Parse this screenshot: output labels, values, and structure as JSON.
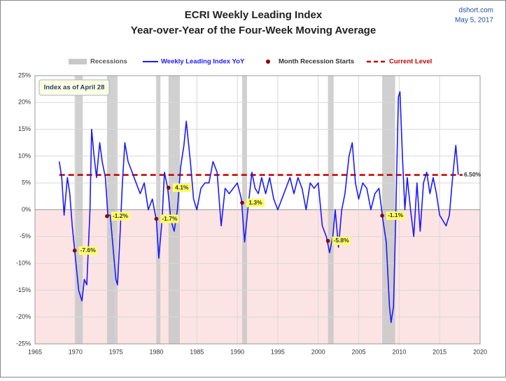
{
  "chart_data": {
    "type": "line",
    "title": "ECRI Weekly Leading Index",
    "subtitle": "Year-over-Year of the Four-Week Moving Average",
    "source": "dshort.com",
    "date": "May 5, 2017",
    "note": "Index as of April 28",
    "xlim": [
      1965,
      2020
    ],
    "xticks": [
      1965,
      1970,
      1975,
      1980,
      1985,
      1990,
      1995,
      2000,
      2005,
      2010,
      2015,
      2020
    ],
    "ylim": [
      -25,
      25
    ],
    "yticks": [
      {
        "value": -25,
        "label": "-25%"
      },
      {
        "value": -20,
        "label": "-20%"
      },
      {
        "value": -15,
        "label": "-15%"
      },
      {
        "value": -10,
        "label": "-10%"
      },
      {
        "value": -5,
        "label": "-5%"
      },
      {
        "value": 0,
        "label": "0%"
      },
      {
        "value": 5,
        "label": "5%"
      },
      {
        "value": 10,
        "label": "10%"
      },
      {
        "value": 15,
        "label": "15%"
      },
      {
        "value": 20,
        "label": "20%"
      },
      {
        "value": 25,
        "label": "25%"
      }
    ],
    "grid": true,
    "negative_fill": "#fde4e4",
    "x": [
      1968.0,
      1968.3,
      1968.6,
      1969.0,
      1969.3,
      1969.6,
      1970.0,
      1970.4,
      1970.8,
      1971.1,
      1971.4,
      1971.8,
      1972.0,
      1972.3,
      1972.6,
      1973.0,
      1973.3,
      1973.7,
      1974.0,
      1974.3,
      1974.7,
      1975.0,
      1975.2,
      1975.5,
      1975.8,
      1976.1,
      1976.5,
      1977.0,
      1977.5,
      1978.0,
      1978.5,
      1979.0,
      1979.5,
      1980.0,
      1980.3,
      1980.7,
      1981.0,
      1981.4,
      1981.8,
      1982.2,
      1982.6,
      1983.0,
      1983.4,
      1983.7,
      1984.2,
      1984.6,
      1985.0,
      1985.5,
      1986.0,
      1986.5,
      1987.0,
      1987.5,
      1988.0,
      1988.5,
      1989.0,
      1989.5,
      1990.0,
      1990.5,
      1990.9,
      1991.3,
      1991.8,
      1992.2,
      1992.6,
      1993.0,
      1993.5,
      1994.0,
      1994.5,
      1995.0,
      1995.5,
      1996.0,
      1996.5,
      1997.0,
      1997.5,
      1998.0,
      1998.5,
      1999.0,
      1999.5,
      2000.0,
      2000.5,
      2001.0,
      2001.4,
      2001.8,
      2002.1,
      2002.5,
      2002.9,
      2003.3,
      2003.8,
      2004.2,
      2004.6,
      2005.0,
      2005.5,
      2006.0,
      2006.5,
      2007.0,
      2007.5,
      2008.0,
      2008.4,
      2008.8,
      2009.0,
      2009.3,
      2009.6,
      2009.9,
      2010.1,
      2010.4,
      2010.7,
      2011.0,
      2011.4,
      2011.8,
      2012.2,
      2012.6,
      2013.0,
      2013.4,
      2013.8,
      2014.2,
      2014.6,
      2015.0,
      2015.4,
      2015.8,
      2016.2,
      2016.6,
      2017.0,
      2017.3
    ],
    "series": [
      {
        "name": "Weekly Leading Index YoY",
        "color": "#1a1aff",
        "values": [
          9,
          6,
          -1,
          6,
          3,
          -3,
          -9,
          -15,
          -17,
          -13,
          -14,
          0,
          15,
          10,
          6,
          12.5,
          9,
          6,
          -1,
          -1,
          -8,
          -13,
          -14,
          -5,
          5,
          12.5,
          9,
          7,
          5,
          3,
          5,
          0,
          2,
          -2,
          -9,
          -2,
          7,
          4,
          -2,
          -4,
          0,
          8,
          12,
          16.5,
          9,
          2,
          0,
          4,
          5,
          5,
          9,
          7,
          -3,
          4,
          3,
          4,
          5,
          2,
          -6,
          0,
          7,
          4,
          3,
          6,
          3,
          6,
          2,
          0,
          2,
          4,
          6,
          3,
          6,
          4,
          0,
          5,
          4,
          5,
          -3,
          -5,
          -8,
          -5,
          0,
          -7,
          0,
          3,
          10,
          12.5,
          5,
          2,
          5,
          4,
          0,
          3,
          4,
          -2,
          -6,
          -18,
          -21,
          -18,
          0,
          21,
          22,
          10,
          0,
          6,
          0,
          -5,
          5,
          -4,
          5,
          7,
          3,
          6,
          3,
          -1,
          -2,
          -3,
          -1,
          6,
          12,
          6.5
        ]
      }
    ],
    "recessions": {
      "name": "Recessions",
      "color": "#c8c8c8",
      "spans": [
        [
          1969.9,
          1970.9
        ],
        [
          1973.9,
          1975.2
        ],
        [
          1980.0,
          1980.5
        ],
        [
          1981.5,
          1982.9
        ],
        [
          1990.6,
          1991.2
        ],
        [
          2001.2,
          2001.9
        ],
        [
          2007.9,
          2009.5
        ]
      ]
    },
    "markers": {
      "name": "Month Recession Starts",
      "color": "#8b0000",
      "x": [
        1969.9,
        1973.9,
        1980.0,
        1981.5,
        1990.6,
        2001.2,
        2007.9
      ],
      "values": [
        -7.6,
        -1.2,
        -1.7,
        4.1,
        1.3,
        -5.8,
        -1.1
      ],
      "value_labels": [
        "-7.6%",
        "-1.2%",
        "-1.7%",
        "4.1%",
        "1.3%",
        "-5.8%",
        "-1.1%"
      ]
    },
    "current_level": {
      "name": "Current Level",
      "color": "#c00000",
      "value": 6.5,
      "value_label": "6.50%"
    }
  }
}
